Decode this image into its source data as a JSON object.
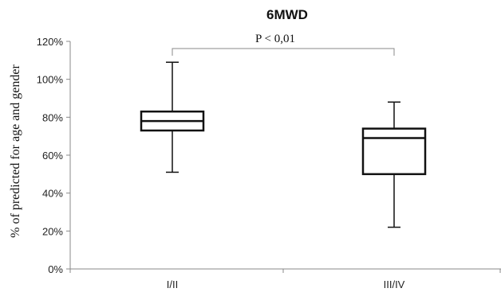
{
  "chart_data": {
    "type": "box",
    "title": "6MWD",
    "ylabel": "% of predicted for age and gender",
    "xlabel": "",
    "ylim": [
      0,
      120
    ],
    "yticks": [
      0,
      20,
      40,
      60,
      80,
      100,
      120
    ],
    "ytick_labels": [
      "0%",
      "20%",
      "40%",
      "60%",
      "80%",
      "100%",
      "120%"
    ],
    "categories": [
      "I/II",
      "III/IV"
    ],
    "boxes": [
      {
        "category": "I/II",
        "min": 51,
        "q1": 73,
        "median": 78,
        "q3": 83,
        "max": 109
      },
      {
        "category": "III/IV",
        "min": 22,
        "q1": 50,
        "median": 69,
        "q3": 74,
        "max": 88
      }
    ],
    "annotation": {
      "text": "P < 0,01",
      "from": "I/II",
      "to": "III/IV"
    },
    "grid": false,
    "legend": "none",
    "colors": {
      "box_fill": "#ffffff",
      "box_stroke": "#111111",
      "axis": "#888888"
    }
  }
}
